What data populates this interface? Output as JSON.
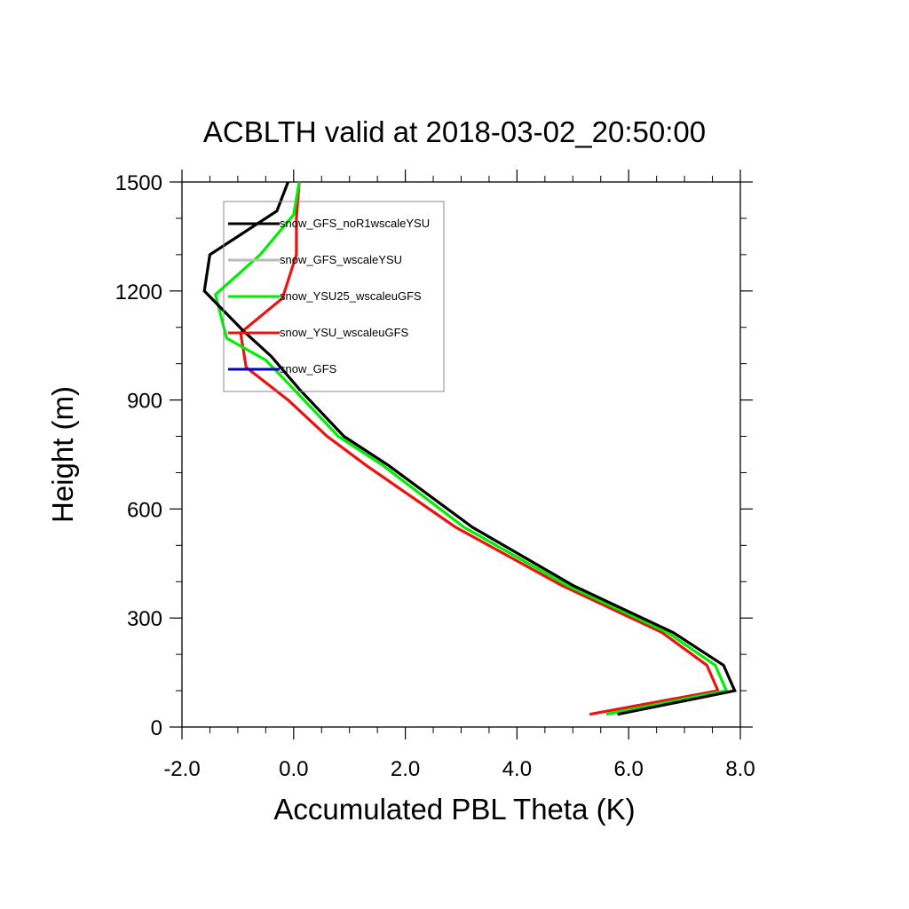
{
  "chart_data": {
    "type": "line",
    "title": "ACBLTH valid at 2018-03-02_20:50:00",
    "xlabel": "Accumulated PBL Theta (K)",
    "ylabel": "Height (m)",
    "xlim": [
      -2.0,
      8.0
    ],
    "ylim": [
      0,
      1500
    ],
    "xticks": [
      -2.0,
      0.0,
      2.0,
      4.0,
      6.0,
      8.0
    ],
    "xtick_labels": [
      "-2.0",
      "0.0",
      "2.0",
      "4.0",
      "6.0",
      "8.0"
    ],
    "yticks": [
      0,
      300,
      600,
      900,
      1200,
      1500
    ],
    "ytick_labels": [
      "0",
      "300",
      "600",
      "900",
      "1200",
      "1500"
    ],
    "legend_position": "top-left",
    "grid": false,
    "series": [
      {
        "name": "snow_GFS_noR1wscaleYSU",
        "color": "#000000",
        "points": [
          [
            5.8,
            35
          ],
          [
            7.9,
            100
          ],
          [
            7.7,
            170
          ],
          [
            6.8,
            260
          ],
          [
            5.0,
            390
          ],
          [
            3.2,
            550
          ],
          [
            1.7,
            720
          ],
          [
            0.9,
            800
          ],
          [
            0.1,
            930
          ],
          [
            -0.4,
            1020
          ],
          [
            -0.9,
            1090
          ],
          [
            -1.6,
            1200
          ],
          [
            -1.5,
            1300
          ],
          [
            -0.3,
            1420
          ],
          [
            -0.1,
            1500
          ]
        ]
      },
      {
        "name": "snow_GFS_wscaleYSU",
        "color": "#bbbbbb",
        "points": []
      },
      {
        "name": "snow_YSU25_wscaleuGFS",
        "color": "#00ee00",
        "points": [
          [
            5.6,
            35
          ],
          [
            7.75,
            100
          ],
          [
            7.55,
            170
          ],
          [
            6.7,
            260
          ],
          [
            4.9,
            390
          ],
          [
            3.05,
            550
          ],
          [
            1.6,
            720
          ],
          [
            0.8,
            800
          ],
          [
            0.0,
            930
          ],
          [
            -0.5,
            1010
          ],
          [
            -1.2,
            1070
          ],
          [
            -1.4,
            1190
          ],
          [
            -0.6,
            1300
          ],
          [
            0.0,
            1410
          ],
          [
            0.1,
            1500
          ]
        ]
      },
      {
        "name": "snow_YSU_wscaleuGFS",
        "color": "#ee1111",
        "points": [
          [
            5.3,
            35
          ],
          [
            7.6,
            100
          ],
          [
            7.4,
            170
          ],
          [
            6.6,
            260
          ],
          [
            4.8,
            390
          ],
          [
            2.9,
            550
          ],
          [
            1.3,
            720
          ],
          [
            0.6,
            800
          ],
          [
            -0.1,
            900
          ],
          [
            -0.85,
            990
          ],
          [
            -0.95,
            1085
          ],
          [
            -0.2,
            1180
          ],
          [
            0.05,
            1300
          ],
          [
            0.05,
            1400
          ],
          [
            0.1,
            1500
          ]
        ]
      },
      {
        "name": "snow_GFS",
        "color": "#0000cc",
        "points": []
      }
    ]
  }
}
